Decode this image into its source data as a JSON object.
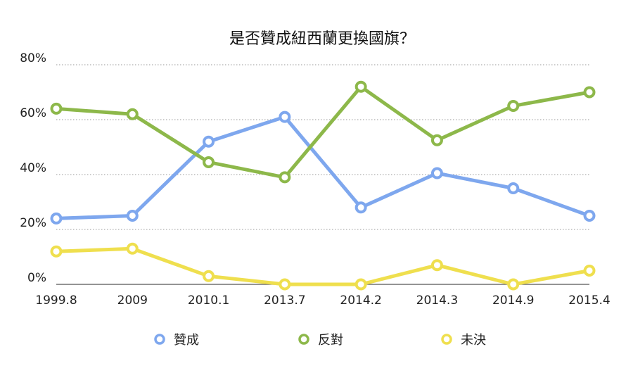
{
  "chart_data": {
    "type": "line",
    "title": "是否贊成紐西蘭更換國旗？",
    "categories": [
      "1999.8",
      "2009",
      "2010.1",
      "2013.7",
      "2014.2",
      "2014.3",
      "2014.9",
      "2015.4"
    ],
    "y_ticks": [
      "0%",
      "20%",
      "40%",
      "60%",
      "80%"
    ],
    "ylim": [
      0,
      80
    ],
    "grid": true,
    "legend_position": "bottom",
    "series": [
      {
        "name": "贊成",
        "color": "#7ea7ee",
        "values": [
          24,
          25,
          52,
          61,
          28,
          40.5,
          35,
          25
        ]
      },
      {
        "name": "反對",
        "color": "#8db84a",
        "values": [
          64,
          62,
          44.5,
          39,
          72,
          52.5,
          65,
          70
        ]
      },
      {
        "name": "未決",
        "color": "#efdf4e",
        "values": [
          12,
          13,
          3,
          0,
          0,
          7,
          0,
          5
        ]
      }
    ]
  }
}
